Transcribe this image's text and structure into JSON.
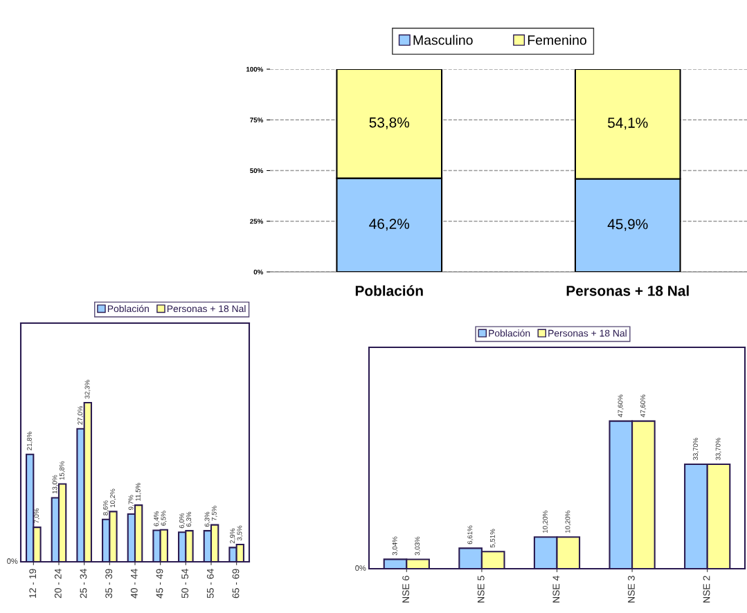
{
  "chart_data": [
    {
      "type": "bar",
      "stacked": true,
      "categories": [
        "Población",
        "Personas + 18 Nal"
      ],
      "ylim": [
        0,
        100
      ],
      "yticks": [
        {
          "value": 0,
          "label": "0%"
        },
        {
          "value": 25,
          "label": "25%"
        },
        {
          "value": 50,
          "label": "50%"
        },
        {
          "value": 75,
          "label": "75%"
        },
        {
          "value": 100,
          "label": "100%"
        }
      ],
      "grid": "y",
      "legend": "top",
      "series": [
        {
          "name": "Masculino",
          "color": "#99ccff",
          "values": [
            46.2,
            45.9
          ],
          "value_labels": [
            "46,2%",
            "45,9%"
          ]
        },
        {
          "name": "Femenino",
          "color": "#ffff99",
          "values": [
            53.8,
            54.1
          ],
          "value_labels": [
            "53,8%",
            "54,1%"
          ]
        }
      ]
    },
    {
      "type": "bar",
      "categories": [
        "12 - 19",
        "20 - 24",
        "25 - 34",
        "35 - 39",
        "40 - 44",
        "45 - 49",
        "50 - 54",
        "55 - 64",
        "65 - 69"
      ],
      "annotations": [
        "0%"
      ],
      "legend": "top",
      "series": [
        {
          "name": "Población",
          "color": "#99ccff",
          "values": [
            21.8,
            13.0,
            27.0,
            8.6,
            9.7,
            6.4,
            6.0,
            6.3,
            2.9
          ],
          "value_labels": [
            "21,8%",
            "13,0%",
            "27,0%",
            "8,6%",
            "9,7%",
            "6,4%",
            "6,0%",
            "6,3%",
            "2,9%"
          ]
        },
        {
          "name": "Personas + 18 Nal",
          "color": "#ffff99",
          "values": [
            7.0,
            15.8,
            32.3,
            10.2,
            11.5,
            6.5,
            6.3,
            7.5,
            3.5
          ],
          "value_labels": [
            "7,0%",
            "15,8%",
            "32,3%",
            "10,2%",
            "11,5%",
            "6,5%",
            "6,3%",
            "7,5%",
            "3,5%"
          ]
        }
      ]
    },
    {
      "type": "bar",
      "categories": [
        "NSE 6",
        "NSE 5",
        "NSE 4",
        "NSE 3",
        "NSE 2"
      ],
      "annotations": [
        "0%"
      ],
      "legend": "top",
      "series": [
        {
          "name": "Población",
          "color": "#99ccff",
          "values": [
            3.04,
            6.61,
            10.2,
            47.6,
            33.7
          ],
          "value_labels": [
            "3,04%",
            "6,61%",
            "10,20%",
            "47,60%",
            "33,70%"
          ]
        },
        {
          "name": "Personas + 18 Nal",
          "color": "#ffff99",
          "values": [
            3.03,
            5.51,
            10.2,
            47.6,
            33.7
          ],
          "value_labels": [
            "3,03%",
            "5,51%",
            "10,20%",
            "47,60%",
            "33,70%"
          ]
        }
      ]
    }
  ]
}
